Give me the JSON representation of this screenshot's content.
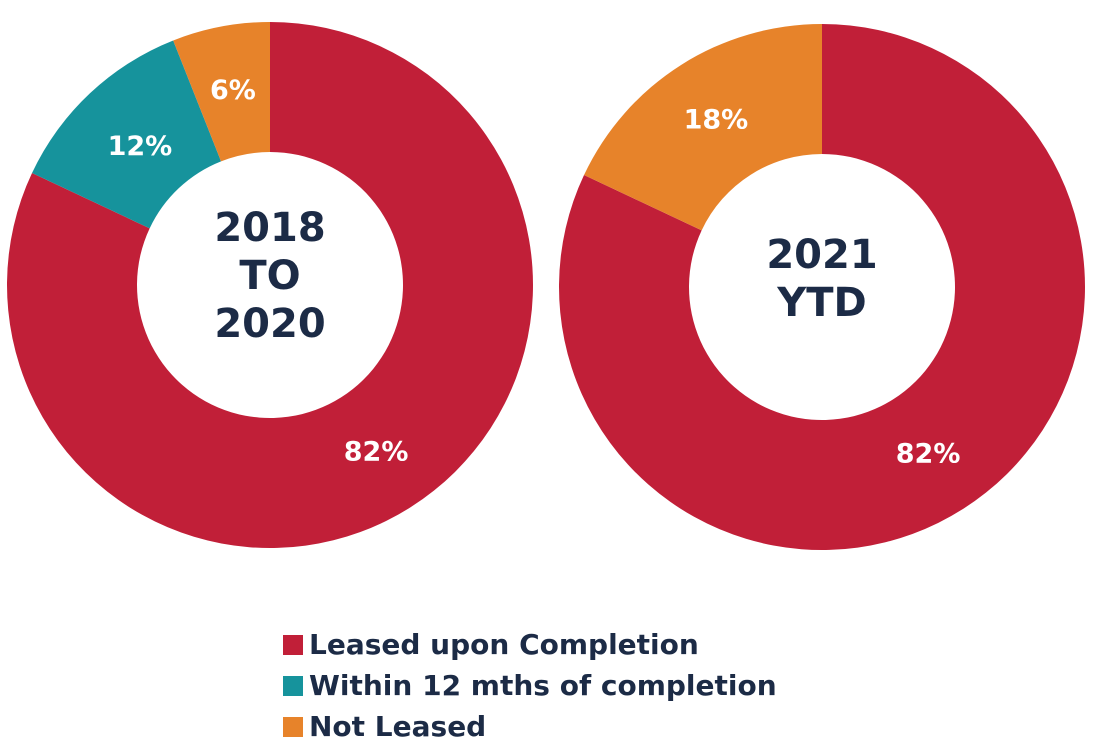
{
  "colors": {
    "leased": "#c11f38",
    "within": "#16939c",
    "not_leased": "#e7832a",
    "text_dark": "#1c2b46",
    "text_light": "#ffffff"
  },
  "chart_data": [
    {
      "type": "pie",
      "variant": "donut",
      "center_label": [
        "2018",
        "TO",
        "2020"
      ],
      "slices": [
        {
          "name": "Leased upon Completion",
          "value": 82,
          "label": "82%",
          "color_key": "leased"
        },
        {
          "name": "Within 12 mths of completion",
          "value": 12,
          "label": "12%",
          "color_key": "within"
        },
        {
          "name": "Not Leased",
          "value": 6,
          "label": "6%",
          "color_key": "not_leased"
        }
      ]
    },
    {
      "type": "pie",
      "variant": "donut",
      "center_label": [
        "2021",
        "YTD"
      ],
      "slices": [
        {
          "name": "Leased upon Completion",
          "value": 82,
          "label": "82%",
          "color_key": "leased"
        },
        {
          "name": "Not Leased",
          "value": 18,
          "label": "18%",
          "color_key": "not_leased"
        }
      ]
    }
  ],
  "legend": [
    {
      "label": "Leased upon Completion",
      "color_key": "leased"
    },
    {
      "label": "Within 12 mths of completion",
      "color_key": "within"
    },
    {
      "label": "Not Leased",
      "color_key": "not_leased"
    }
  ]
}
